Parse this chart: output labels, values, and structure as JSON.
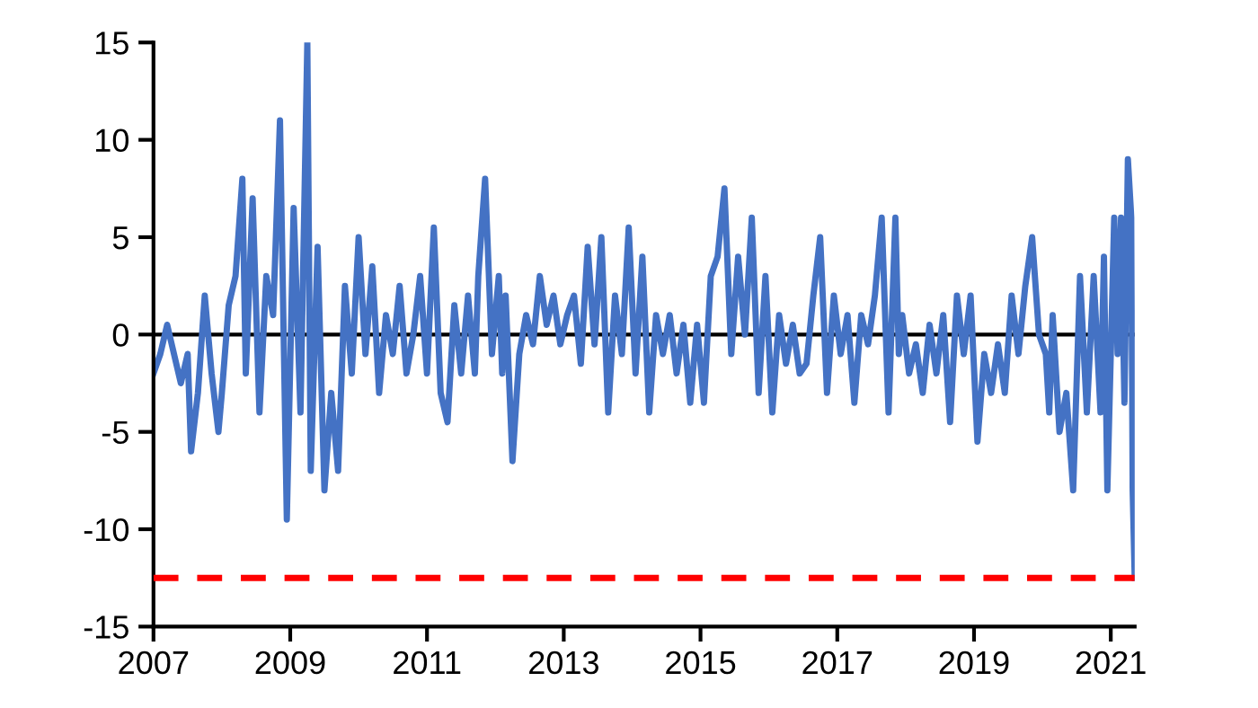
{
  "chart_data": {
    "type": "line",
    "x": [
      2007.0,
      2007.1,
      2007.2,
      2007.3,
      2007.4,
      2007.5,
      2007.55,
      2007.65,
      2007.75,
      2007.85,
      2007.95,
      2008.0,
      2008.1,
      2008.2,
      2008.3,
      2008.35,
      2008.45,
      2008.55,
      2008.65,
      2008.75,
      2008.85,
      2008.95,
      2009.05,
      2009.15,
      2009.25,
      2009.3,
      2009.4,
      2009.5,
      2009.6,
      2009.7,
      2009.8,
      2009.9,
      2010.0,
      2010.1,
      2010.2,
      2010.3,
      2010.4,
      2010.5,
      2010.6,
      2010.7,
      2010.8,
      2010.9,
      2011.0,
      2011.1,
      2011.2,
      2011.3,
      2011.4,
      2011.5,
      2011.6,
      2011.7,
      2011.75,
      2011.85,
      2011.95,
      2012.05,
      2012.1,
      2012.15,
      2012.25,
      2012.35,
      2012.45,
      2012.55,
      2012.65,
      2012.75,
      2012.85,
      2012.95,
      2013.05,
      2013.15,
      2013.25,
      2013.35,
      2013.45,
      2013.55,
      2013.65,
      2013.75,
      2013.85,
      2013.95,
      2014.05,
      2014.15,
      2014.25,
      2014.35,
      2014.45,
      2014.55,
      2014.65,
      2014.75,
      2014.85,
      2014.95,
      2015.05,
      2015.15,
      2015.25,
      2015.35,
      2015.45,
      2015.55,
      2015.65,
      2015.75,
      2015.85,
      2015.95,
      2016.05,
      2016.15,
      2016.25,
      2016.35,
      2016.45,
      2016.55,
      2016.65,
      2016.75,
      2016.85,
      2016.95,
      2017.05,
      2017.15,
      2017.25,
      2017.35,
      2017.45,
      2017.55,
      2017.65,
      2017.75,
      2017.85,
      2017.9,
      2017.95,
      2018.05,
      2018.15,
      2018.25,
      2018.35,
      2018.45,
      2018.55,
      2018.65,
      2018.75,
      2018.85,
      2018.95,
      2019.05,
      2019.15,
      2019.25,
      2019.35,
      2019.45,
      2019.55,
      2019.65,
      2019.75,
      2019.85,
      2019.95,
      2020.05,
      2020.1,
      2020.15,
      2020.25,
      2020.35,
      2020.45,
      2020.55,
      2020.65,
      2020.75,
      2020.85,
      2020.9,
      2020.95,
      2021.05,
      2021.1,
      2021.15,
      2021.2,
      2021.25,
      2021.3,
      2021.32,
      2021.35
    ],
    "series": [
      {
        "color": "#4472c4",
        "values": [
          -2,
          -1,
          0.5,
          -1,
          -2.5,
          -1,
          -6,
          -3,
          2,
          -2,
          -5,
          -3,
          1.5,
          3,
          8,
          -2,
          7,
          -4,
          3,
          1,
          11,
          -9.5,
          6.5,
          -4,
          15,
          -7,
          4.5,
          -8,
          -3,
          -7,
          2.5,
          -2,
          5,
          -1,
          3.5,
          -3,
          1,
          -1,
          2.5,
          -2,
          0,
          3,
          -2,
          5.5,
          -3,
          -4.5,
          1.5,
          -2,
          2,
          -2,
          3,
          8,
          -1,
          3,
          -2,
          2,
          -6.5,
          -1,
          1,
          -0.5,
          3,
          0.5,
          2,
          -0.5,
          1,
          2,
          -1.5,
          4.5,
          -0.5,
          5,
          -4,
          2,
          -1,
          5.5,
          -2,
          4,
          -4,
          1,
          -1,
          1,
          -2,
          0.5,
          -3.5,
          0.5,
          -3.5,
          3,
          4,
          7.5,
          -1,
          4,
          0,
          6,
          -3,
          3,
          -4,
          1,
          -1.5,
          0.5,
          -2,
          -1.5,
          2,
          5,
          -3,
          2,
          -1,
          1,
          -3.5,
          1,
          -0.5,
          2,
          6,
          -4,
          6,
          -1,
          1,
          -2,
          -0.5,
          -3,
          0.5,
          -2,
          1,
          -4.5,
          2,
          -1,
          2,
          -5.5,
          -1,
          -3,
          -0.5,
          -3,
          2,
          -1,
          2.5,
          5,
          0,
          -1,
          -4,
          1,
          -5,
          -3,
          -8,
          3,
          -4,
          3,
          -4,
          4,
          -8,
          6,
          -1,
          6,
          -3.5,
          9,
          6,
          -8,
          -12.5
        ]
      }
    ],
    "xlim": [
      2007,
      2021.35
    ],
    "xticks": [
      2007,
      2009,
      2011,
      2013,
      2015,
      2017,
      2019,
      2021
    ],
    "ylim": [
      -15,
      15
    ],
    "yticks": [
      -15,
      -10,
      -5,
      0,
      5,
      10,
      15
    ],
    "ref_lines": [
      {
        "axis": "y",
        "value": 0,
        "color": "#000000",
        "line_style": "solid"
      },
      {
        "axis": "y",
        "value": -12.5,
        "color": "#ff0000",
        "line_style": "dashed"
      }
    ],
    "grid": false,
    "legend": false
  }
}
